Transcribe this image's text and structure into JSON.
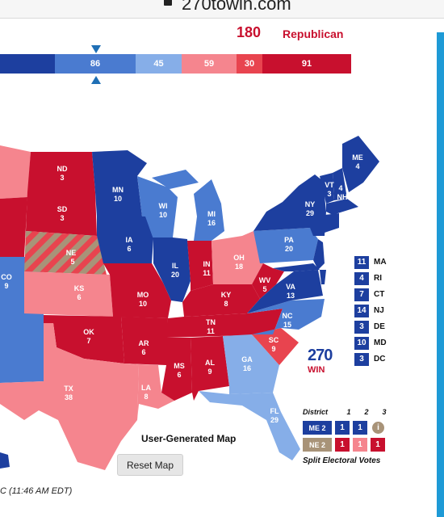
{
  "browser": {
    "url": "270towin.com"
  },
  "header": {
    "republican_total": "180",
    "republican_label": "Republican"
  },
  "bar": {
    "segments": [
      {
        "value": "",
        "color": "#1d3f9f",
        "width": 68
      },
      {
        "value": "86",
        "color": "#4a7bd0",
        "width": 100
      },
      {
        "value": "45",
        "color": "#86aee8",
        "width": 57
      },
      {
        "value": "59",
        "color": "#f5858e",
        "width": 68
      },
      {
        "value": "30",
        "color": "#e8444f",
        "width": 32
      },
      {
        "value": "91",
        "color": "#c8102e",
        "width": 110
      }
    ]
  },
  "colors": {
    "safe_d": "#1d3f9f",
    "likely_d": "#4a7bd0",
    "lean_d": "#86aee8",
    "lean_r": "#f5858e",
    "likely_r": "#e8444f",
    "safe_r": "#c8102e",
    "tossup": "#a89378"
  },
  "states": [
    {
      "code": "ND",
      "ev": "3"
    },
    {
      "code": "SD",
      "ev": "3"
    },
    {
      "code": "NE",
      "ev": "5"
    },
    {
      "code": "KS",
      "ev": "6"
    },
    {
      "code": "OK",
      "ev": "7"
    },
    {
      "code": "TX",
      "ev": "38"
    },
    {
      "code": "CO",
      "ev": "9"
    },
    {
      "code": "MN",
      "ev": "10"
    },
    {
      "code": "IA",
      "ev": "6"
    },
    {
      "code": "MO",
      "ev": "10"
    },
    {
      "code": "AR",
      "ev": "6"
    },
    {
      "code": "LA",
      "ev": "8"
    },
    {
      "code": "WI",
      "ev": "10"
    },
    {
      "code": "IL",
      "ev": "20"
    },
    {
      "code": "MS",
      "ev": "6"
    },
    {
      "code": "MI",
      "ev": "16"
    },
    {
      "code": "IN",
      "ev": "11"
    },
    {
      "code": "KY",
      "ev": "8"
    },
    {
      "code": "TN",
      "ev": "11"
    },
    {
      "code": "AL",
      "ev": "9"
    },
    {
      "code": "GA",
      "ev": "16"
    },
    {
      "code": "FL",
      "ev": "29"
    },
    {
      "code": "OH",
      "ev": "18"
    },
    {
      "code": "WV",
      "ev": "5"
    },
    {
      "code": "VA",
      "ev": "13"
    },
    {
      "code": "NC",
      "ev": "15"
    },
    {
      "code": "SC",
      "ev": "9"
    },
    {
      "code": "PA",
      "ev": "20"
    },
    {
      "code": "NY",
      "ev": "29"
    },
    {
      "code": "VT",
      "ev": "3"
    },
    {
      "code": "NH",
      "ev": "4"
    },
    {
      "code": "ME",
      "ev": "4"
    }
  ],
  "northeast_list": [
    {
      "ev": "11",
      "code": "MA"
    },
    {
      "ev": "4",
      "code": "RI"
    },
    {
      "ev": "7",
      "code": "CT"
    },
    {
      "ev": "14",
      "code": "NJ"
    },
    {
      "ev": "3",
      "code": "DE"
    },
    {
      "ev": "10",
      "code": "MD"
    },
    {
      "ev": "3",
      "code": "DC"
    }
  ],
  "logo": {
    "number": "270",
    "suffix": "WIN"
  },
  "map_label": "User-Generated Map",
  "reset_label": "Reset Map",
  "timestamp": "C (11:46 AM EDT)",
  "split": {
    "header_label": "District",
    "col_labels": [
      "1",
      "2",
      "3"
    ],
    "rows": [
      {
        "tag": "ME 2",
        "cells": [
          "1",
          "1"
        ],
        "info": "i"
      },
      {
        "tag": "NE 2",
        "cells": [
          "1",
          "1",
          "1"
        ]
      }
    ],
    "caption": "Split Electoral Votes"
  }
}
